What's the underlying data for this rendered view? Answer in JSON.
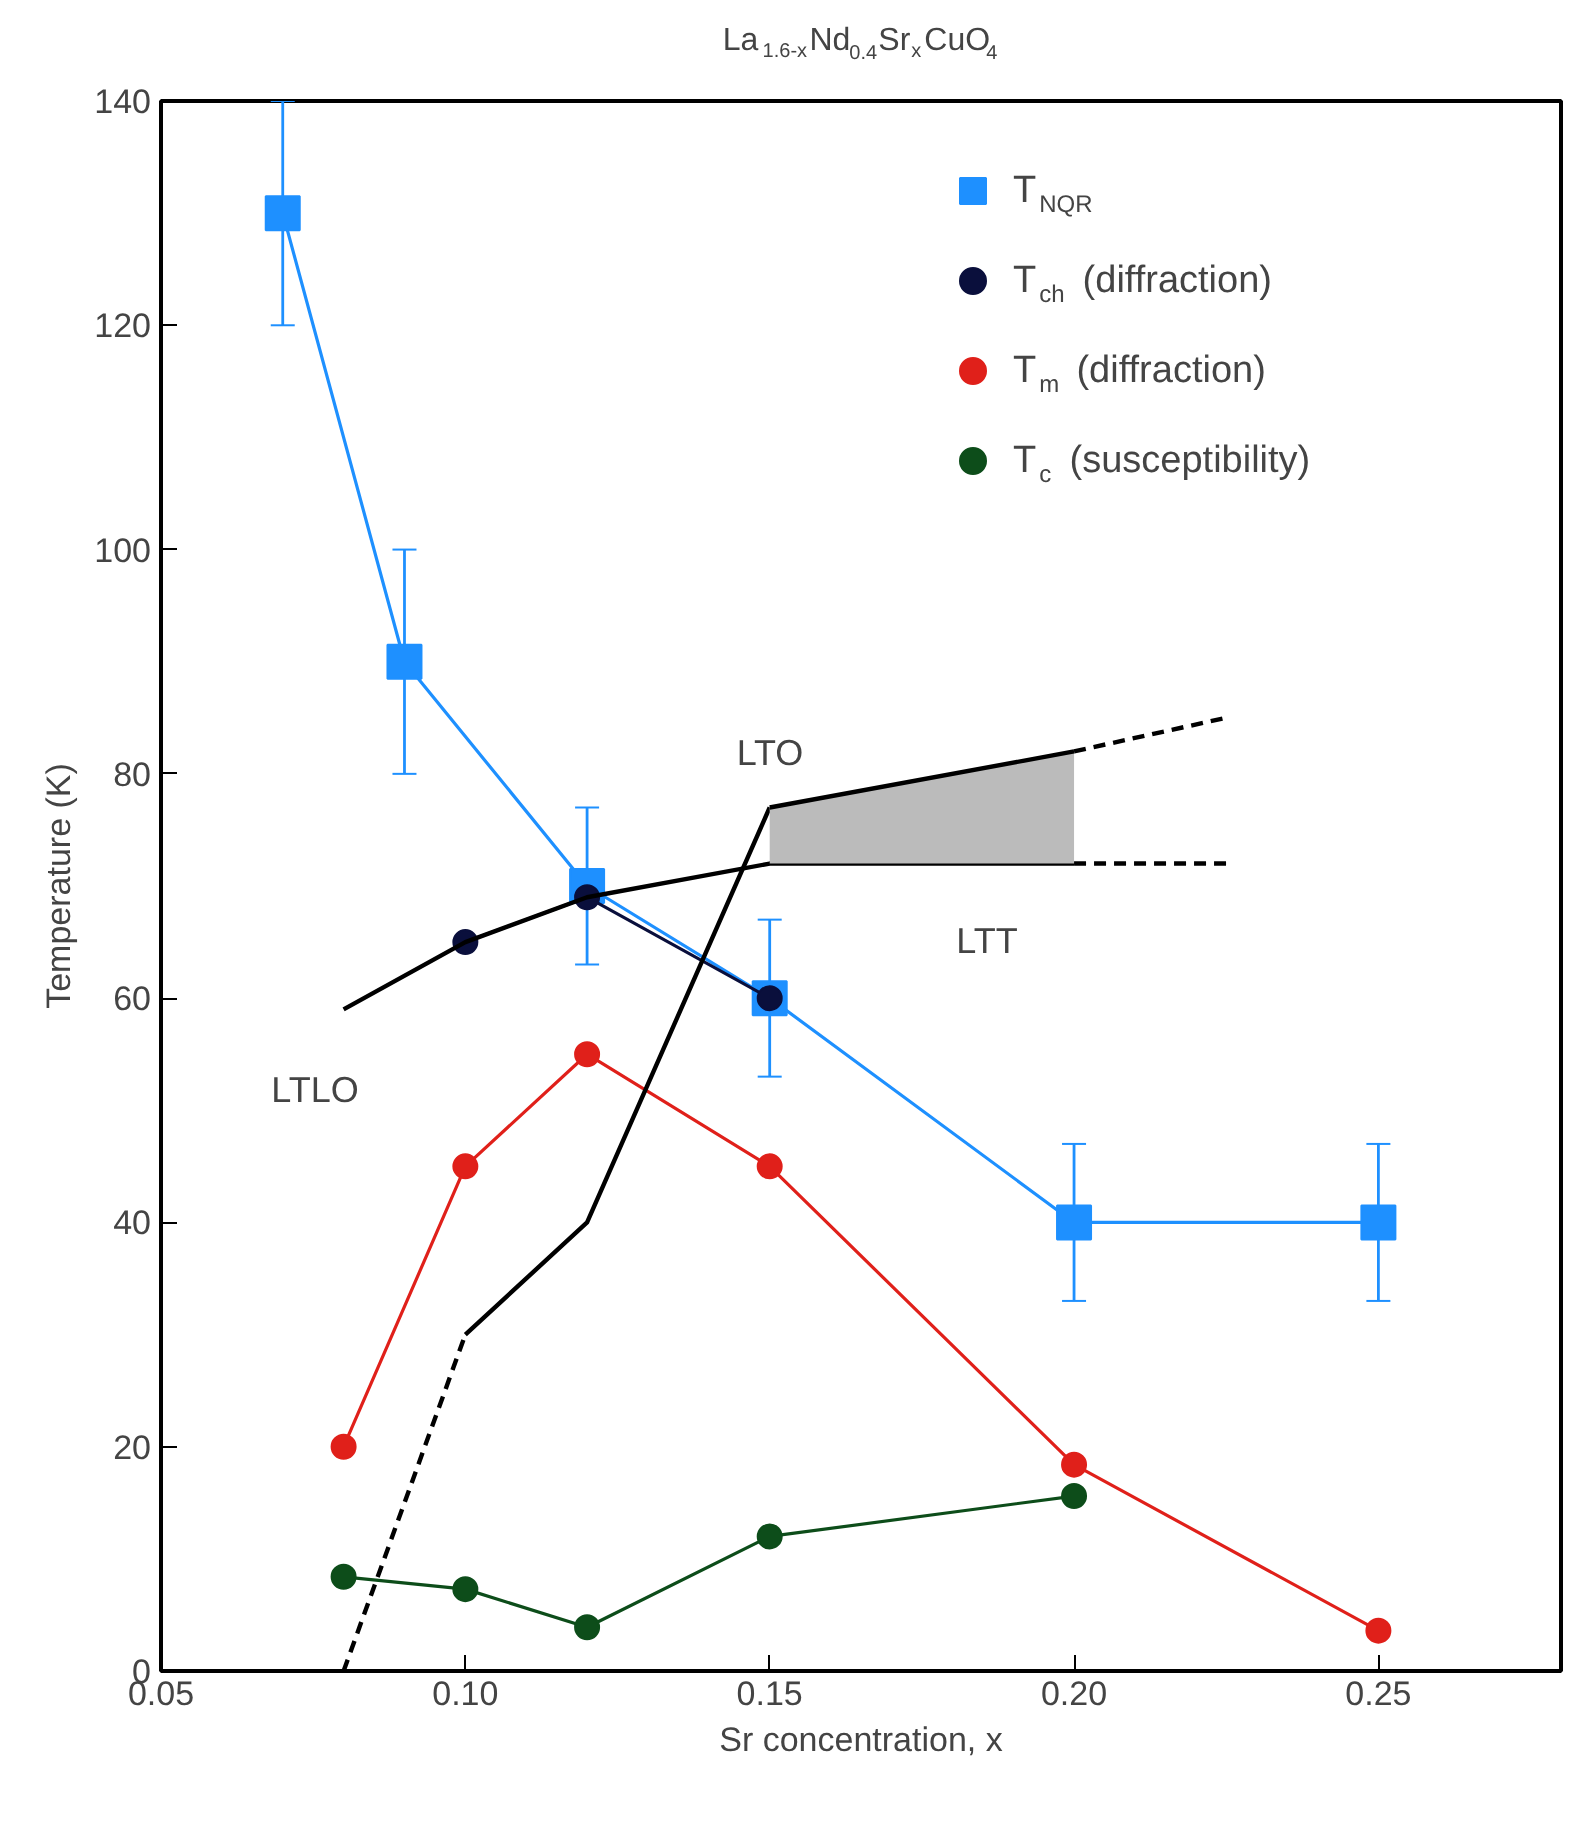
{
  "chart_data": {
    "type": "line",
    "title": "La$_{1.6-x}$Nd$_{0.4}$Sr$_{x}$CuO$_{4}$",
    "xlabel": "Sr concentration, x",
    "ylabel": "Temperature (K)",
    "xlim": [
      0.05,
      0.28
    ],
    "ylim": [
      0,
      140
    ],
    "xticks": [
      {
        "value": 0.05,
        "label": "0.05"
      },
      {
        "value": 0.1,
        "label": "0.10"
      },
      {
        "value": 0.15,
        "label": "0.15"
      },
      {
        "value": 0.2,
        "label": "0.20"
      },
      {
        "value": 0.25,
        "label": "0.25"
      }
    ],
    "yticks": [
      0,
      20,
      40,
      60,
      80,
      100,
      120,
      140
    ],
    "grid": false,
    "legend": "top right",
    "series": [
      {
        "color": "#000000",
        "marker": "none",
        "line_style": "solid",
        "x": [
          0.08,
          0.1,
          0.12,
          0.15,
          0.2
        ],
        "values": [
          59,
          65,
          69,
          72,
          72
        ]
      },
      {
        "color": "#000000",
        "marker": "none",
        "line_style": "dashed",
        "x": [
          0.2,
          0.225
        ],
        "values": [
          72,
          72
        ]
      },
      {
        "color": "#000000",
        "marker": "none",
        "line_style": "solid",
        "x": [
          0.1,
          0.12,
          0.15
        ],
        "values": [
          30,
          40,
          77
        ]
      },
      {
        "color": "#000000",
        "marker": "none",
        "line_style": "solid",
        "x": [
          0.15,
          0.2
        ],
        "values": [
          77,
          82
        ],
        "lower": [
          72,
          72
        ],
        "upper": [
          77,
          82
        ]
      },
      {
        "color": "#000000",
        "marker": "none",
        "line_style": "dashed",
        "x": [
          0.08,
          0.1
        ],
        "values": [
          0,
          30
        ]
      },
      {
        "color": "#000000",
        "marker": "none",
        "line_style": "dashed",
        "x": [
          0.2,
          0.225
        ],
        "values": [
          82,
          85
        ]
      },
      {
        "name": "T$_{NQR}$",
        "color": "#1e90ff",
        "marker": "square",
        "x": [
          0.07,
          0.09,
          0.12,
          0.15,
          0.2,
          0.25
        ],
        "values": [
          130,
          90,
          70,
          60,
          40,
          40
        ],
        "errors": [
          10,
          10,
          7,
          7,
          7,
          7
        ]
      },
      {
        "name": "T$_{ch}$ (diffraction)",
        "color": "#0a0f3c",
        "marker": "circle",
        "x": [
          0.1,
          0.12,
          0.15
        ],
        "values": [
          65,
          69,
          60
        ]
      },
      {
        "name": "T$_{m}$ (diffraction)",
        "color": "#e0201a",
        "marker": "circle",
        "x": [
          0.08,
          0.1,
          0.12,
          0.15,
          0.2,
          0.25
        ],
        "values": [
          20,
          45,
          55,
          45,
          18.4,
          3.6
        ]
      },
      {
        "name": "T$_{c}$ (susceptibility)",
        "color": "#0d4d1a",
        "marker": "circle",
        "x": [
          0.08,
          0.1,
          0.12,
          0.15,
          0.2
        ],
        "values": [
          8.4,
          7.3,
          3.9,
          12,
          15.6
        ]
      }
    ],
    "annotations": [
      "LTO",
      "LTT",
      "LTLO"
    ]
  }
}
